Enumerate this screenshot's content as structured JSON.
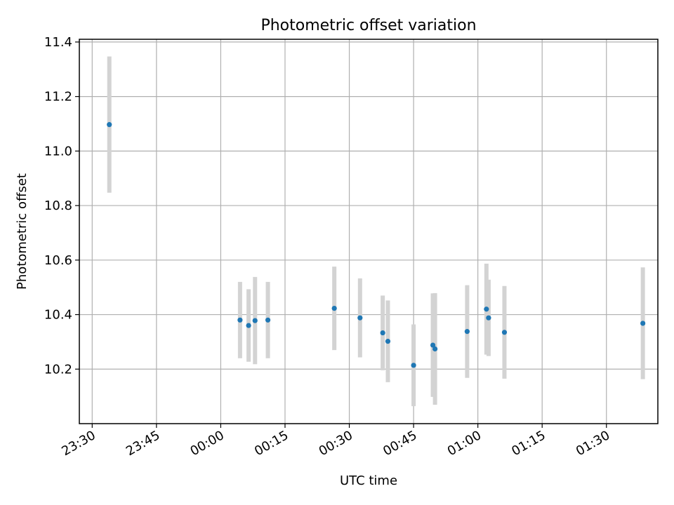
{
  "chart_data": {
    "type": "scatter",
    "title": "Photometric offset variation",
    "xlabel": "UTC time",
    "ylabel": "Photometric offset",
    "x_axis": "time",
    "xlim": [
      "23:27",
      "01:42"
    ],
    "ylim": [
      10.0,
      11.41
    ],
    "x_ticks": [
      "23:30",
      "23:45",
      "00:00",
      "00:15",
      "00:30",
      "00:45",
      "01:00",
      "01:15",
      "01:30"
    ],
    "y_ticks": [
      10.2,
      10.4,
      10.6,
      10.8,
      11.0,
      11.2,
      11.4
    ],
    "y_tick_labels": [
      "10.2",
      "10.4",
      "10.6",
      "10.8",
      "11.0",
      "11.2",
      "11.4"
    ],
    "grid": true,
    "colors": {
      "marker": "#1f77b4",
      "errorbar": "#d3d3d3"
    },
    "points": [
      {
        "x": "23:34",
        "y": 11.097,
        "yerr": 0.25
      },
      {
        "x": "00:04.5",
        "y": 10.38,
        "yerr": 0.14
      },
      {
        "x": "00:06.5",
        "y": 10.36,
        "yerr": 0.133
      },
      {
        "x": "00:08",
        "y": 10.378,
        "yerr": 0.16
      },
      {
        "x": "00:11",
        "y": 10.38,
        "yerr": 0.14
      },
      {
        "x": "00:26.5",
        "y": 10.423,
        "yerr": 0.153
      },
      {
        "x": "00:32.5",
        "y": 10.388,
        "yerr": 0.145
      },
      {
        "x": "00:37.8",
        "y": 10.333,
        "yerr": 0.137
      },
      {
        "x": "00:39",
        "y": 10.302,
        "yerr": 0.15
      },
      {
        "x": "00:45",
        "y": 10.214,
        "yerr": 0.15
      },
      {
        "x": "00:49.5",
        "y": 10.288,
        "yerr": 0.19
      },
      {
        "x": "00:50",
        "y": 10.274,
        "yerr": 0.205
      },
      {
        "x": "00:57.5",
        "y": 10.338,
        "yerr": 0.17
      },
      {
        "x": "01:02",
        "y": 10.42,
        "yerr": 0.167
      },
      {
        "x": "01:02.5",
        "y": 10.388,
        "yerr": 0.14
      },
      {
        "x": "01:06.2",
        "y": 10.335,
        "yerr": 0.17
      },
      {
        "x": "01:38.5",
        "y": 10.368,
        "yerr": 0.205
      }
    ]
  }
}
